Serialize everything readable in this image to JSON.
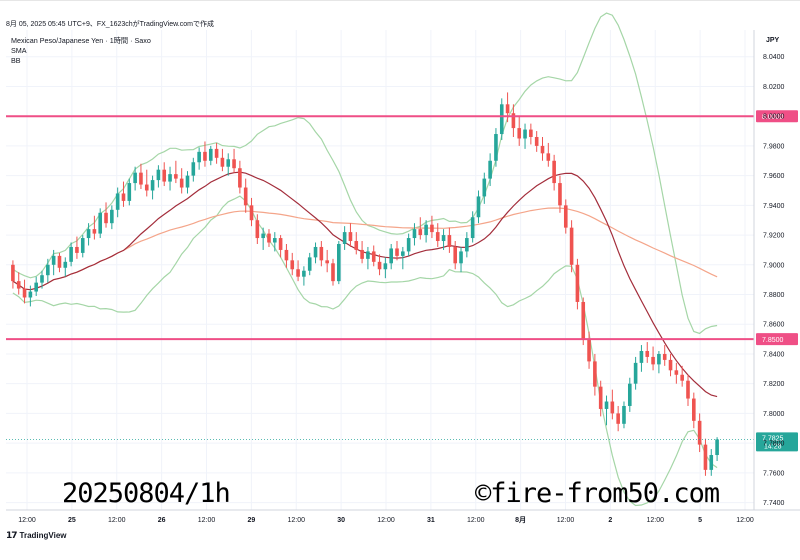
{
  "header": {
    "meta": "8月 05, 2025 05:45 UTC+9、FX_1623chがTradingView.comで作成"
  },
  "info": {
    "symbol_line": "Mexican Peso/Japanese Yen · 1時間 · Saxo",
    "indicator_1": "SMA",
    "indicator_2": "BB"
  },
  "overlay": {
    "date_text": "20250804/1h",
    "copyright_text": "©fire-from50.com"
  },
  "footer": {
    "logo_text": "TradingView"
  },
  "colors": {
    "up": "#26a69a",
    "down": "#ef5350",
    "bb_band": "#a5d6a7",
    "sma_short": "#a32d3b",
    "sma_long": "#f4a58a",
    "level_line": "#ef4f86",
    "price_tag": "#26a69a"
  },
  "chart_data": {
    "type": "candlestick",
    "currency_label": "JPY",
    "y_range": [
      7.735,
      8.058
    ],
    "y_ticks": [
      "8.0400",
      "8.0200",
      "8.0000",
      "7.9800",
      "7.9600",
      "7.9400",
      "7.9200",
      "7.9000",
      "7.8800",
      "7.8600",
      "7.8400",
      "7.8200",
      "7.8000",
      "7.7800",
      "7.7600",
      "7.7400"
    ],
    "x_ticks": [
      "12:00",
      "25",
      "12:00",
      "26",
      "12:00",
      "29",
      "12:00",
      "30",
      "12:00",
      "31",
      "12:00",
      "8月",
      "12:00",
      "2",
      "12:00",
      "5",
      "12:00"
    ],
    "horizontal_levels": [
      {
        "value": 8.0,
        "label": "8.0000"
      },
      {
        "value": 7.85,
        "label": "7.8500"
      }
    ],
    "last_price": {
      "value": 7.7825,
      "label": "7.7825",
      "countdown": "14:28"
    },
    "candles": [
      [
        7.9,
        7.903,
        7.884,
        7.889
      ],
      [
        7.889,
        7.895,
        7.88,
        7.884
      ],
      [
        7.884,
        7.89,
        7.874,
        7.878
      ],
      [
        7.878,
        7.886,
        7.872,
        7.882
      ],
      [
        7.882,
        7.892,
        7.879,
        7.888
      ],
      [
        7.888,
        7.896,
        7.884,
        7.893
      ],
      [
        7.893,
        7.904,
        7.888,
        7.9
      ],
      [
        7.9,
        7.91,
        7.893,
        7.906
      ],
      [
        7.906,
        7.908,
        7.895,
        7.898
      ],
      [
        7.898,
        7.905,
        7.892,
        7.902
      ],
      [
        7.902,
        7.915,
        7.899,
        7.912
      ],
      [
        7.912,
        7.919,
        7.904,
        7.908
      ],
      [
        7.908,
        7.92,
        7.905,
        7.918
      ],
      [
        7.918,
        7.928,
        7.913,
        7.924
      ],
      [
        7.924,
        7.933,
        7.917,
        7.921
      ],
      [
        7.921,
        7.938,
        7.918,
        7.935
      ],
      [
        7.935,
        7.942,
        7.925,
        7.928
      ],
      [
        7.928,
        7.94,
        7.924,
        7.937
      ],
      [
        7.937,
        7.952,
        7.932,
        7.948
      ],
      [
        7.948,
        7.956,
        7.939,
        7.943
      ],
      [
        7.943,
        7.958,
        7.94,
        7.955
      ],
      [
        7.955,
        7.966,
        7.95,
        7.962
      ],
      [
        7.962,
        7.968,
        7.951,
        7.954
      ],
      [
        7.954,
        7.964,
        7.946,
        7.95
      ],
      [
        7.95,
        7.96,
        7.944,
        7.957
      ],
      [
        7.957,
        7.967,
        7.952,
        7.964
      ],
      [
        7.964,
        7.969,
        7.953,
        7.956
      ],
      [
        7.956,
        7.966,
        7.95,
        7.961
      ],
      [
        7.961,
        7.97,
        7.955,
        7.958
      ],
      [
        7.958,
        7.965,
        7.948,
        7.952
      ],
      [
        7.952,
        7.963,
        7.948,
        7.96
      ],
      [
        7.96,
        7.972,
        7.956,
        7.969
      ],
      [
        7.969,
        7.979,
        7.964,
        7.976
      ],
      [
        7.976,
        7.983,
        7.966,
        7.97
      ],
      [
        7.97,
        7.98,
        7.967,
        7.978
      ],
      [
        7.978,
        7.982,
        7.968,
        7.972
      ],
      [
        7.972,
        7.978,
        7.963,
        7.966
      ],
      [
        7.966,
        7.975,
        7.96,
        7.971
      ],
      [
        7.971,
        7.978,
        7.962,
        7.965
      ],
      [
        7.965,
        7.97,
        7.948,
        7.952
      ],
      [
        7.952,
        7.958,
        7.935,
        7.94
      ],
      [
        7.94,
        7.945,
        7.926,
        7.93
      ],
      [
        7.93,
        7.934,
        7.914,
        7.918
      ],
      [
        7.918,
        7.925,
        7.91,
        7.921
      ],
      [
        7.921,
        7.924,
        7.912,
        7.915
      ],
      [
        7.915,
        7.922,
        7.909,
        7.918
      ],
      [
        7.918,
        7.92,
        7.905,
        7.91
      ],
      [
        7.91,
        7.914,
        7.898,
        7.903
      ],
      [
        7.903,
        7.908,
        7.893,
        7.897
      ],
      [
        7.897,
        7.903,
        7.889,
        7.892
      ],
      [
        7.892,
        7.899,
        7.886,
        7.896
      ],
      [
        7.896,
        7.908,
        7.893,
        7.905
      ],
      [
        7.905,
        7.915,
        7.901,
        7.912
      ],
      [
        7.912,
        7.916,
        7.899,
        7.903
      ],
      [
        7.903,
        7.91,
        7.895,
        7.901
      ],
      [
        7.901,
        7.904,
        7.886,
        7.889
      ],
      [
        7.889,
        7.916,
        7.887,
        7.914
      ],
      [
        7.914,
        7.926,
        7.91,
        7.922
      ],
      [
        7.922,
        7.928,
        7.912,
        7.916
      ],
      [
        7.916,
        7.922,
        7.907,
        7.91
      ],
      [
        7.91,
        7.916,
        7.901,
        7.904
      ],
      [
        7.904,
        7.912,
        7.897,
        7.909
      ],
      [
        7.909,
        7.913,
        7.899,
        7.902
      ],
      [
        7.902,
        7.907,
        7.893,
        7.897
      ],
      [
        7.897,
        7.905,
        7.891,
        7.901
      ],
      [
        7.901,
        7.914,
        7.897,
        7.911
      ],
      [
        7.911,
        7.916,
        7.903,
        7.906
      ],
      [
        7.906,
        7.912,
        7.897,
        7.909
      ],
      [
        7.909,
        7.921,
        7.906,
        7.918
      ],
      [
        7.918,
        7.928,
        7.913,
        7.924
      ],
      [
        7.924,
        7.932,
        7.917,
        7.92
      ],
      [
        7.92,
        7.93,
        7.915,
        7.927
      ],
      [
        7.927,
        7.933,
        7.918,
        7.922
      ],
      [
        7.922,
        7.928,
        7.912,
        7.916
      ],
      [
        7.916,
        7.924,
        7.91,
        7.92
      ],
      [
        7.92,
        7.925,
        7.908,
        7.912
      ],
      [
        7.912,
        7.916,
        7.897,
        7.901
      ],
      [
        7.901,
        7.912,
        7.895,
        7.909
      ],
      [
        7.909,
        7.922,
        7.905,
        7.918
      ],
      [
        7.918,
        7.936,
        7.915,
        7.932
      ],
      [
        7.932,
        7.95,
        7.928,
        7.946
      ],
      [
        7.946,
        7.962,
        7.941,
        7.958
      ],
      [
        7.958,
        7.975,
        7.953,
        7.97
      ],
      [
        7.97,
        7.992,
        7.966,
        7.988
      ],
      [
        7.988,
        8.012,
        7.984,
        8.008
      ],
      [
        8.008,
        8.016,
        7.996,
        8.002
      ],
      [
        8.002,
        8.008,
        7.986,
        7.992
      ],
      [
        7.992,
        8.0,
        7.98,
        7.985
      ],
      [
        7.985,
        7.995,
        7.978,
        7.991
      ],
      [
        7.991,
        7.995,
        7.981,
        7.986
      ],
      [
        7.986,
        7.99,
        7.976,
        7.98
      ],
      [
        7.98,
        7.986,
        7.97,
        7.975
      ],
      [
        7.975,
        7.982,
        7.966,
        7.97
      ],
      [
        7.97,
        7.974,
        7.95,
        7.955
      ],
      [
        7.955,
        7.96,
        7.935,
        7.94
      ],
      [
        7.94,
        7.944,
        7.921,
        7.925
      ],
      [
        7.925,
        7.93,
        7.895,
        7.9
      ],
      [
        7.9,
        7.904,
        7.87,
        7.875
      ],
      [
        7.875,
        7.878,
        7.846,
        7.85
      ],
      [
        7.85,
        7.855,
        7.83,
        7.835
      ],
      [
        7.835,
        7.84,
        7.812,
        7.818
      ],
      [
        7.818,
        7.822,
        7.798,
        7.803
      ],
      [
        7.803,
        7.812,
        7.792,
        7.808
      ],
      [
        7.808,
        7.816,
        7.796,
        7.8
      ],
      [
        7.8,
        7.805,
        7.788,
        7.793
      ],
      [
        7.793,
        7.808,
        7.79,
        7.805
      ],
      [
        7.805,
        7.824,
        7.801,
        7.82
      ],
      [
        7.82,
        7.838,
        7.816,
        7.834
      ],
      [
        7.834,
        7.846,
        7.828,
        7.842
      ],
      [
        7.842,
        7.848,
        7.834,
        7.838
      ],
      [
        7.838,
        7.845,
        7.829,
        7.833
      ],
      [
        7.833,
        7.842,
        7.827,
        7.84
      ],
      [
        7.84,
        7.846,
        7.832,
        7.836
      ],
      [
        7.836,
        7.84,
        7.825,
        7.829
      ],
      [
        7.829,
        7.834,
        7.82,
        7.826
      ],
      [
        7.826,
        7.832,
        7.818,
        7.822
      ],
      [
        7.822,
        7.826,
        7.805,
        7.81
      ],
      [
        7.81,
        7.814,
        7.79,
        7.795
      ],
      [
        7.795,
        7.8,
        7.774,
        7.779
      ],
      [
        7.779,
        7.783,
        7.758,
        7.762
      ],
      [
        7.762,
        7.776,
        7.758,
        7.772
      ],
      [
        7.772,
        7.784,
        7.768,
        7.7825
      ]
    ]
  }
}
